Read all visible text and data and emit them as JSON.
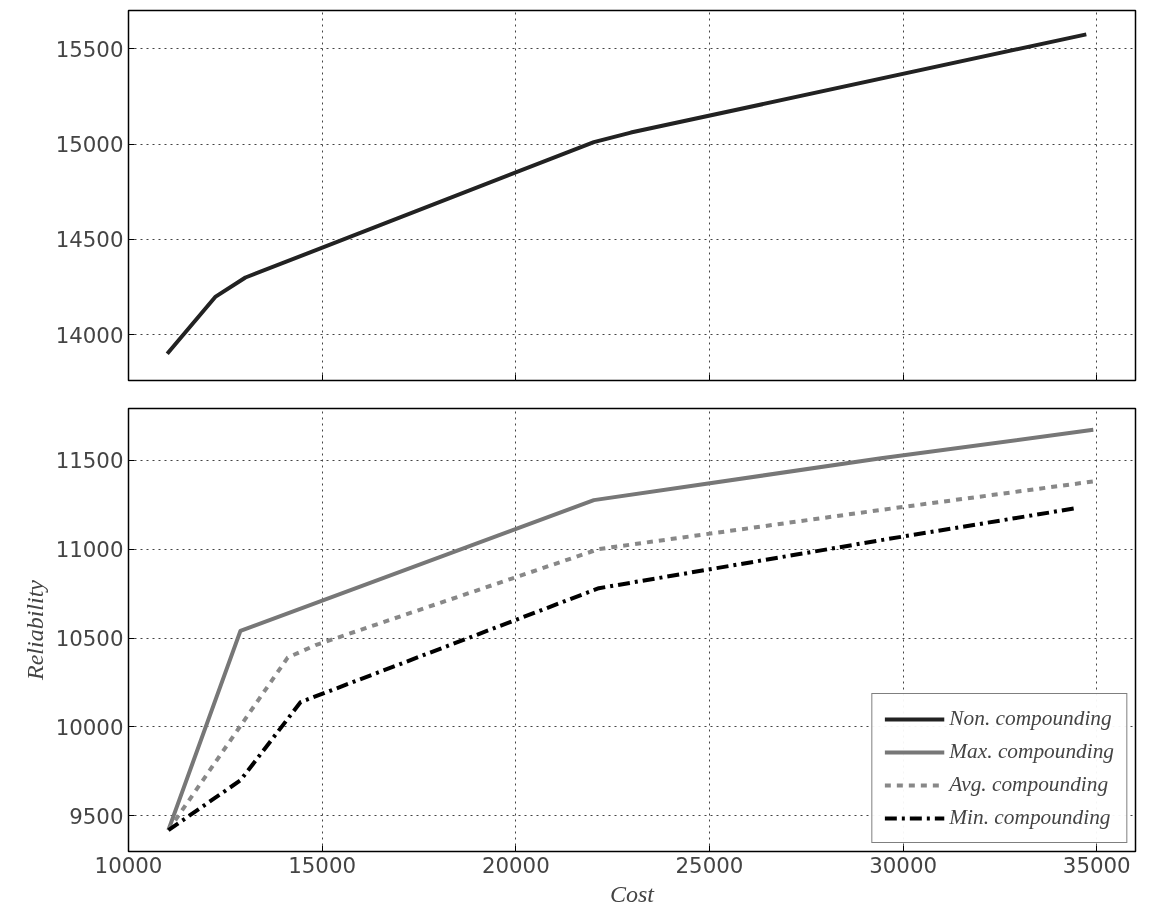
{
  "chart_data": [
    {
      "type": "line",
      "xlim": [
        10000,
        36000
      ],
      "ylim": [
        13760,
        15700
      ],
      "xticks": [
        10000,
        15000,
        20000,
        25000,
        30000,
        35000
      ],
      "yticks": [
        14000,
        14500,
        15000,
        15500
      ],
      "grid": true,
      "tick_labels": "y",
      "legend": "bottom right",
      "series": [
        {
          "name": "Non. compounding",
          "color": "#222222",
          "line_style": "solid",
          "x": [
            11000,
            12250,
            13020,
            22015,
            22970,
            34730
          ],
          "values": [
            13900,
            14200,
            14300,
            15010,
            15060,
            15575
          ]
        }
      ]
    },
    {
      "type": "line",
      "xlabel": "Cost",
      "ylabel": "Reliability",
      "xlim": [
        10000,
        36000
      ],
      "ylim": [
        9300,
        11790
      ],
      "xticks": [
        10000,
        15000,
        20000,
        25000,
        30000,
        35000
      ],
      "yticks": [
        9500,
        10000,
        10500,
        11000,
        11500
      ],
      "grid": true,
      "legend": "bottom right",
      "series": [
        {
          "name": "Max. compounding",
          "color": "#777777",
          "line_style": "solid",
          "x": [
            11030,
            12890,
            22015,
            29430,
            34910
          ],
          "values": [
            9420,
            10540,
            11275,
            11510,
            11670
          ]
        },
        {
          "name": "Avg. compounding",
          "color": "#888888",
          "line_style": "dashed",
          "x": [
            11030,
            14110,
            14830,
            22145,
            29430,
            34910
          ],
          "values": [
            9420,
            10390,
            10460,
            11000,
            11220,
            11380
          ]
        },
        {
          "name": "Min. compounding",
          "color": "#000000",
          "line_style": "dashdot",
          "x": [
            11030,
            12890,
            14445,
            22145,
            29430,
            34470
          ],
          "values": [
            9420,
            9700,
            10140,
            10780,
            11050,
            11230
          ]
        }
      ]
    }
  ]
}
